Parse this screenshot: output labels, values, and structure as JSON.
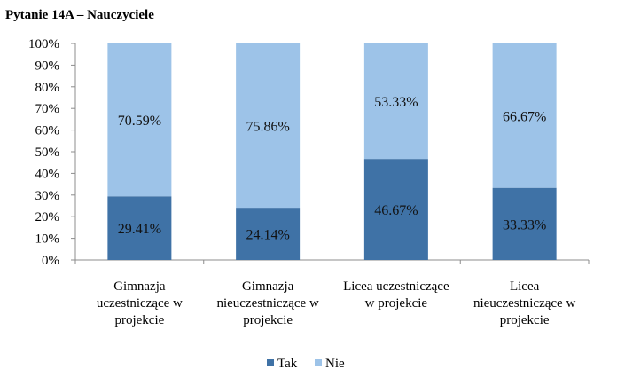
{
  "chart_data": {
    "type": "bar",
    "stacked": true,
    "percent": true,
    "title": "Pytanie 14A – Nauczyciele",
    "categories": [
      [
        "Gimnazja",
        "uczestniczące w",
        "projekcie"
      ],
      [
        "Gimnazja",
        "nieuczestniczące w",
        "projekcie"
      ],
      [
        "Licea uczestniczące",
        "w projekcie"
      ],
      [
        "Licea",
        "nieuczestniczące w",
        "projekcie"
      ]
    ],
    "series": [
      {
        "name": "Tak",
        "color": "#3F72A6",
        "values": [
          29.41,
          24.14,
          46.67,
          33.33
        ],
        "labels": [
          "29.41%",
          "24.14%",
          "46.67%",
          "33.33%"
        ]
      },
      {
        "name": "Nie",
        "color": "#9DC3E8",
        "values": [
          70.59,
          75.86,
          53.33,
          66.67
        ],
        "labels": [
          "70.59%",
          "75.86%",
          "53.33%",
          "66.67%"
        ]
      }
    ],
    "ylim": [
      0,
      100
    ],
    "yticks": [
      "0%",
      "10%",
      "20%",
      "30%",
      "40%",
      "50%",
      "60%",
      "70%",
      "80%",
      "90%",
      "100%"
    ],
    "grid": false,
    "legend": "bottom"
  }
}
